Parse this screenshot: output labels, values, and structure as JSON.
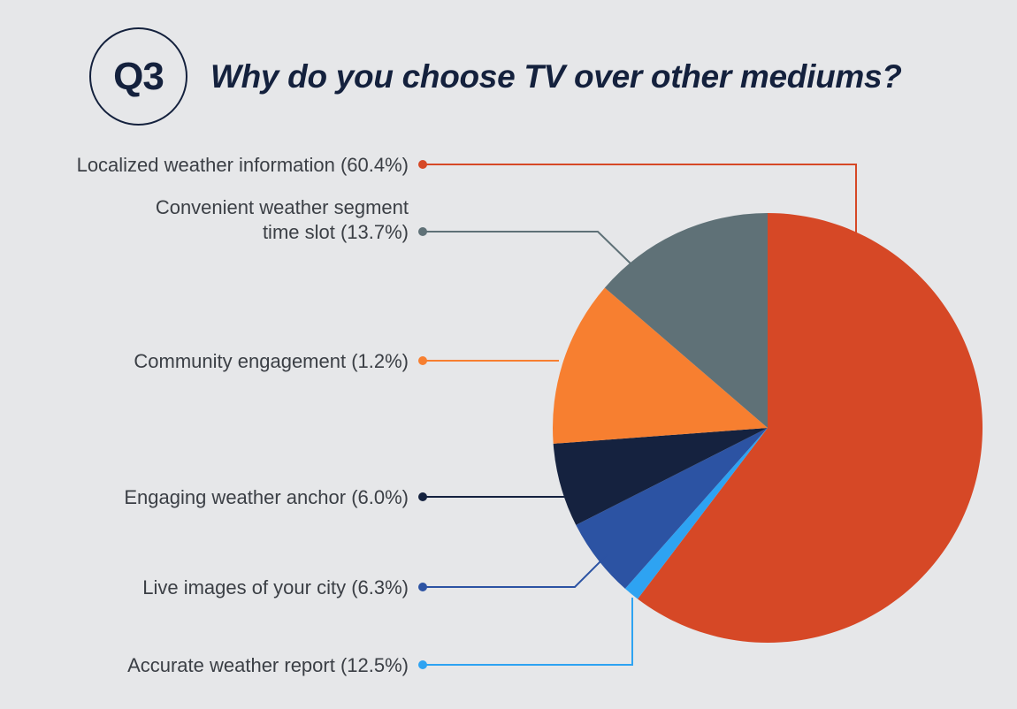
{
  "header": {
    "badge": "Q3",
    "question": "Why do you choose TV over other mediums?"
  },
  "chart_data": {
    "type": "pie",
    "title": "Why do you choose TV over other mediums?",
    "slices": [
      {
        "name": "Localized weather information",
        "value": 60.4,
        "label": [
          "Localized weather information (60.4%)"
        ],
        "color": "#d64826"
      },
      {
        "name": "Community engagement",
        "value": 1.2,
        "label": [
          "Community engagement (1.2%)"
        ],
        "color": "#2ea3f2"
      },
      {
        "name": "Engaging weather anchor",
        "value": 6.0,
        "label": [
          "Engaging weather anchor (6.0%)"
        ],
        "color": "#2c53a3"
      },
      {
        "name": "Live images of your city",
        "value": 6.3,
        "label": [
          "Live images of your city (6.3%)"
        ],
        "color": "#15223f"
      },
      {
        "name": "Accurate weather report",
        "value": 12.5,
        "label": [
          "Accurate weather report (12.5%)"
        ],
        "color": "#f77f30"
      },
      {
        "name": "Convenient weather segment time slot",
        "value": 13.7,
        "label": [
          "Convenient weather segment",
          "time slot (13.7%)"
        ],
        "color": "#5f7177"
      }
    ],
    "start": "12 o'clock",
    "direction": "clockwise",
    "legend": "left, leader lines"
  }
}
